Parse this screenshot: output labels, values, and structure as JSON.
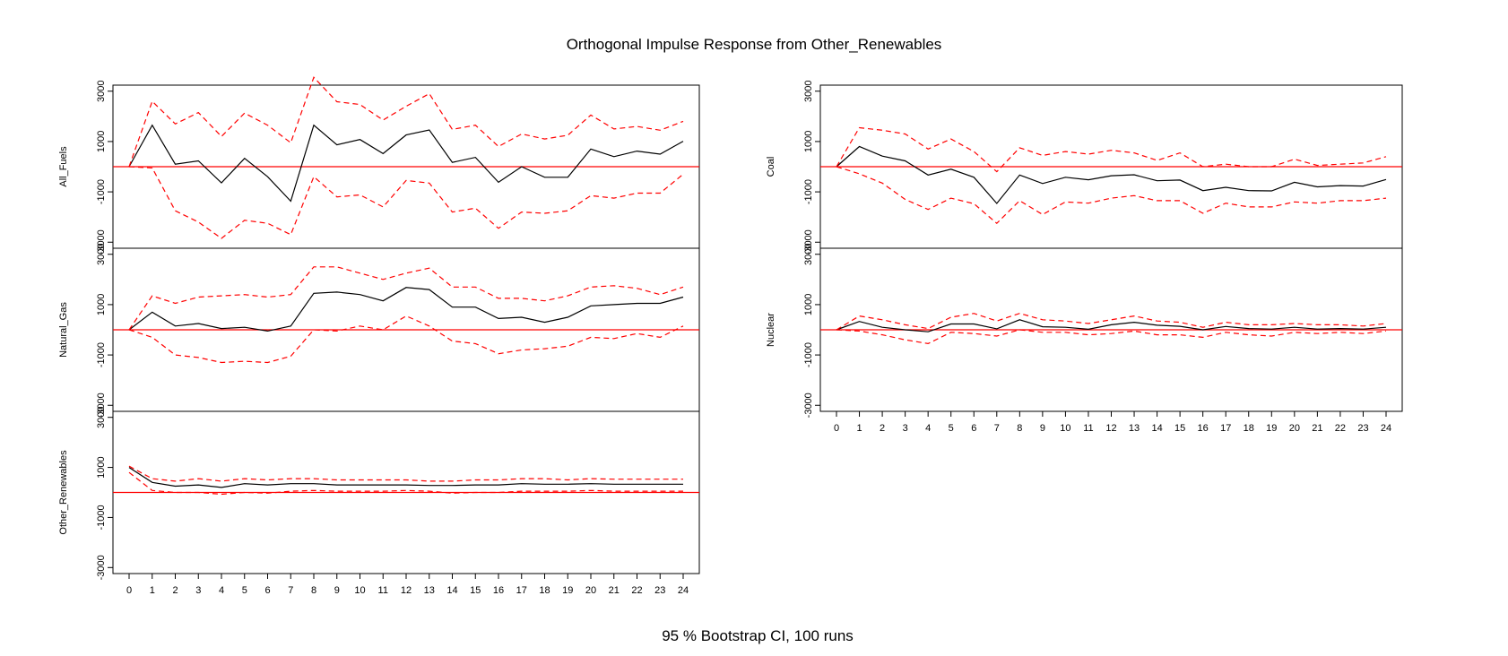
{
  "title": "Orthogonal Impulse Response from Other_Renewables",
  "footer": "95 % Bootstrap CI,  100 runs",
  "colors": {
    "response": "#000000",
    "ci": "#ff0000",
    "zero_line": "#ff0000",
    "frame": "#000000"
  },
  "chart_data": [
    {
      "type": "line",
      "ylabel": "All_Fuels",
      "x": [
        0,
        1,
        2,
        3,
        4,
        5,
        6,
        7,
        8,
        9,
        10,
        11,
        12,
        13,
        14,
        15,
        16,
        17,
        18,
        19,
        20,
        21,
        22,
        23,
        24
      ],
      "ylim": [
        -3000,
        3000
      ],
      "yticks": [
        -3000,
        -1000,
        1000,
        3000
      ],
      "series": [
        {
          "values": [
            0,
            1650,
            100,
            230,
            -640,
            330,
            -400,
            -1370,
            1650,
            870,
            1080,
            520,
            1260,
            1460,
            170,
            370,
            -620,
            0,
            -420,
            -420,
            700,
            400,
            620,
            500,
            1010
          ]
        },
        {
          "values": [
            0,
            2600,
            1700,
            2150,
            1200,
            2130,
            1650,
            950,
            3550,
            2580,
            2470,
            1850,
            2400,
            2900,
            1480,
            1650,
            800,
            1300,
            1100,
            1250,
            2050,
            1500,
            1600,
            1450,
            1800
          ]
        },
        {
          "values": [
            0,
            -50,
            -1750,
            -2200,
            -2850,
            -2130,
            -2250,
            -2700,
            -400,
            -1200,
            -1120,
            -1600,
            -550,
            -650,
            -1800,
            -1650,
            -2450,
            -1800,
            -1850,
            -1750,
            -1150,
            -1250,
            -1050,
            -1050,
            -300
          ]
        }
      ]
    },
    {
      "type": "line",
      "ylabel": "Natural_Gas",
      "x": [
        0,
        1,
        2,
        3,
        4,
        5,
        6,
        7,
        8,
        9,
        10,
        11,
        12,
        13,
        14,
        15,
        16,
        17,
        18,
        19,
        20,
        21,
        22,
        23,
        24
      ],
      "ylim": [
        -3000,
        3000
      ],
      "yticks": [
        -3000,
        -1000,
        1000,
        3000
      ],
      "series": [
        {
          "values": [
            0,
            700,
            150,
            250,
            50,
            100,
            -50,
            150,
            1450,
            1500,
            1400,
            1150,
            1680,
            1600,
            900,
            900,
            450,
            500,
            300,
            500,
            950,
            1000,
            1050,
            1050,
            1300
          ]
        },
        {
          "values": [
            0,
            1350,
            1050,
            1300,
            1350,
            1400,
            1300,
            1400,
            2500,
            2500,
            2250,
            2000,
            2250,
            2450,
            1700,
            1700,
            1250,
            1250,
            1150,
            1350,
            1700,
            1750,
            1650,
            1400,
            1700
          ]
        },
        {
          "values": [
            0,
            -300,
            -1000,
            -1100,
            -1300,
            -1250,
            -1300,
            -1050,
            0,
            -50,
            150,
            0,
            550,
            150,
            -450,
            -550,
            -950,
            -800,
            -750,
            -650,
            -300,
            -350,
            -150,
            -300,
            150
          ]
        }
      ]
    },
    {
      "type": "line",
      "ylabel": "Other_Renewables",
      "x": [
        0,
        1,
        2,
        3,
        4,
        5,
        6,
        7,
        8,
        9,
        10,
        11,
        12,
        13,
        14,
        15,
        16,
        17,
        18,
        19,
        20,
        21,
        22,
        23,
        24
      ],
      "ylim": [
        -3000,
        3000
      ],
      "yticks": [
        -3000,
        -1000,
        1000,
        3000
      ],
      "series": [
        {
          "values": [
            1000,
            400,
            250,
            300,
            200,
            350,
            300,
            350,
            350,
            300,
            300,
            300,
            300,
            280,
            280,
            300,
            300,
            350,
            330,
            330,
            350,
            330,
            330,
            330,
            330
          ]
        },
        {
          "values": [
            1050,
            550,
            450,
            550,
            450,
            550,
            500,
            550,
            550,
            500,
            500,
            500,
            500,
            450,
            450,
            500,
            500,
            550,
            550,
            500,
            550,
            530,
            530,
            530,
            530
          ]
        },
        {
          "values": [
            800,
            80,
            0,
            0,
            -70,
            0,
            -30,
            50,
            80,
            50,
            50,
            50,
            80,
            50,
            -30,
            0,
            0,
            50,
            50,
            50,
            80,
            50,
            50,
            50,
            50
          ]
        }
      ]
    },
    {
      "type": "line",
      "ylabel": "Coal",
      "x": [
        0,
        1,
        2,
        3,
        4,
        5,
        6,
        7,
        8,
        9,
        10,
        11,
        12,
        13,
        14,
        15,
        16,
        17,
        18,
        19,
        20,
        21,
        22,
        23,
        24
      ],
      "ylim": [
        -3000,
        3000
      ],
      "yticks": [
        -3000,
        -1000,
        1000,
        3000
      ],
      "series": [
        {
          "values": [
            0,
            800,
            420,
            230,
            -330,
            -100,
            -420,
            -1460,
            -330,
            -670,
            -420,
            -520,
            -360,
            -320,
            -560,
            -530,
            -950,
            -820,
            -950,
            -960,
            -620,
            -800,
            -750,
            -770,
            -510
          ]
        },
        {
          "values": [
            0,
            1550,
            1450,
            1300,
            700,
            1100,
            600,
            -200,
            750,
            450,
            600,
            500,
            650,
            550,
            250,
            550,
            0,
            100,
            0,
            0,
            300,
            50,
            100,
            150,
            400
          ]
        },
        {
          "values": [
            0,
            -280,
            -650,
            -1300,
            -1700,
            -1250,
            -1470,
            -2250,
            -1350,
            -1900,
            -1400,
            -1450,
            -1250,
            -1150,
            -1350,
            -1350,
            -1850,
            -1450,
            -1600,
            -1600,
            -1400,
            -1450,
            -1350,
            -1350,
            -1250
          ]
        }
      ]
    },
    {
      "type": "line",
      "ylabel": "Nuclear",
      "x": [
        0,
        1,
        2,
        3,
        4,
        5,
        6,
        7,
        8,
        9,
        10,
        11,
        12,
        13,
        14,
        15,
        16,
        17,
        18,
        19,
        20,
        21,
        22,
        23,
        24
      ],
      "ylim": [
        -3000,
        3000
      ],
      "yticks": [
        -3000,
        -1000,
        1000,
        3000
      ],
      "series": [
        {
          "values": [
            0,
            330,
            100,
            0,
            -80,
            230,
            230,
            40,
            400,
            120,
            100,
            20,
            200,
            300,
            180,
            140,
            0,
            130,
            50,
            30,
            100,
            30,
            50,
            30,
            100
          ]
        },
        {
          "values": [
            0,
            550,
            400,
            200,
            50,
            500,
            650,
            350,
            650,
            400,
            350,
            250,
            400,
            550,
            350,
            300,
            100,
            300,
            200,
            200,
            250,
            200,
            200,
            150,
            250
          ]
        },
        {
          "values": [
            0,
            -50,
            -200,
            -400,
            -550,
            -100,
            -150,
            -250,
            0,
            -100,
            -100,
            -200,
            -150,
            -50,
            -200,
            -200,
            -300,
            -100,
            -200,
            -250,
            -100,
            -150,
            -100,
            -150,
            -50
          ]
        }
      ]
    }
  ]
}
